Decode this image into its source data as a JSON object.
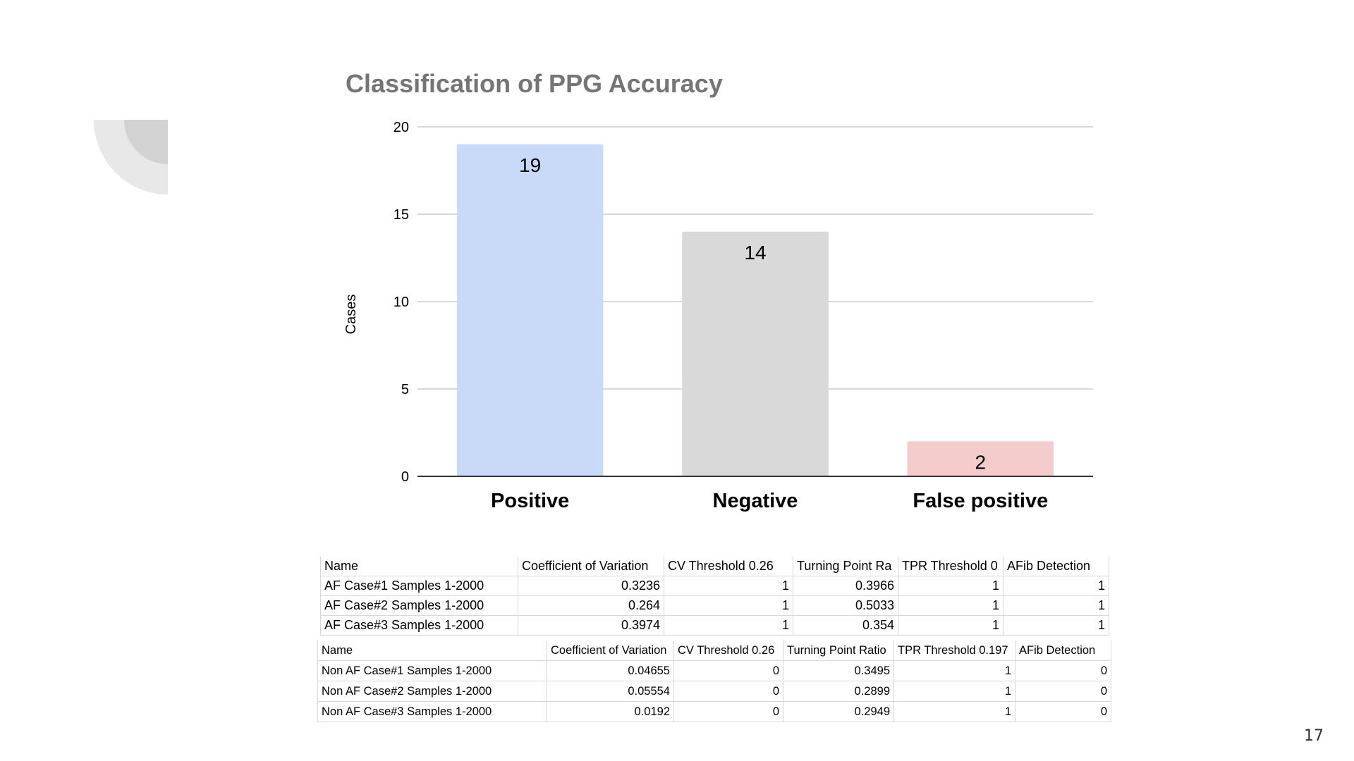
{
  "slide": {
    "page_number": "17"
  },
  "colors": {
    "title": "#757575",
    "gridline": "#cccccc",
    "baseline": "#333333"
  },
  "chart_data": {
    "type": "bar",
    "title": "Classification of PPG Accuracy",
    "xlabel": "",
    "ylabel": "Cases",
    "categories": [
      "Positive",
      "Negative",
      "False positive"
    ],
    "values": [
      19,
      14,
      2
    ],
    "data_labels": [
      "19",
      "14",
      "2"
    ],
    "colors": [
      "#c9daf8",
      "#d9d9d9",
      "#f4cccc"
    ],
    "ylim": [
      0,
      20
    ],
    "yticks": [
      0,
      5,
      10,
      15,
      20
    ],
    "grid": true,
    "legend": "none"
  },
  "tables": {
    "af": {
      "headers": [
        "Name",
        "Coefficient of Variation",
        "CV Threshold 0.26",
        "Turning Point Ra",
        "TPR Threshold 0",
        "AFib Detection"
      ],
      "rows": [
        [
          "AF Case#1 Samples 1-2000",
          "0.3236",
          "1",
          "0.3966",
          "1",
          "1"
        ],
        [
          "AF Case#2 Samples 1-2000",
          "0.264",
          "1",
          "0.5033",
          "1",
          "1"
        ],
        [
          "AF Case#3 Samples 1-2000",
          "0.3974",
          "1",
          "0.354",
          "1",
          "1"
        ]
      ]
    },
    "non_af": {
      "headers": [
        "Name",
        "Coefficient of Variation",
        "CV Threshold 0.26",
        "Turning Point Ratio",
        "TPR Threshold 0.197",
        "AFib Detection"
      ],
      "rows": [
        [
          "Non AF Case#1 Samples 1-2000",
          "0.04655",
          "0",
          "0.3495",
          "1",
          "0"
        ],
        [
          "Non AF Case#2 Samples 1-2000",
          "0.05554",
          "0",
          "0.2899",
          "1",
          "0"
        ],
        [
          "Non AF Case#3 Samples 1-2000",
          "0.0192",
          "0",
          "0.2949",
          "1",
          "0"
        ]
      ]
    }
  }
}
